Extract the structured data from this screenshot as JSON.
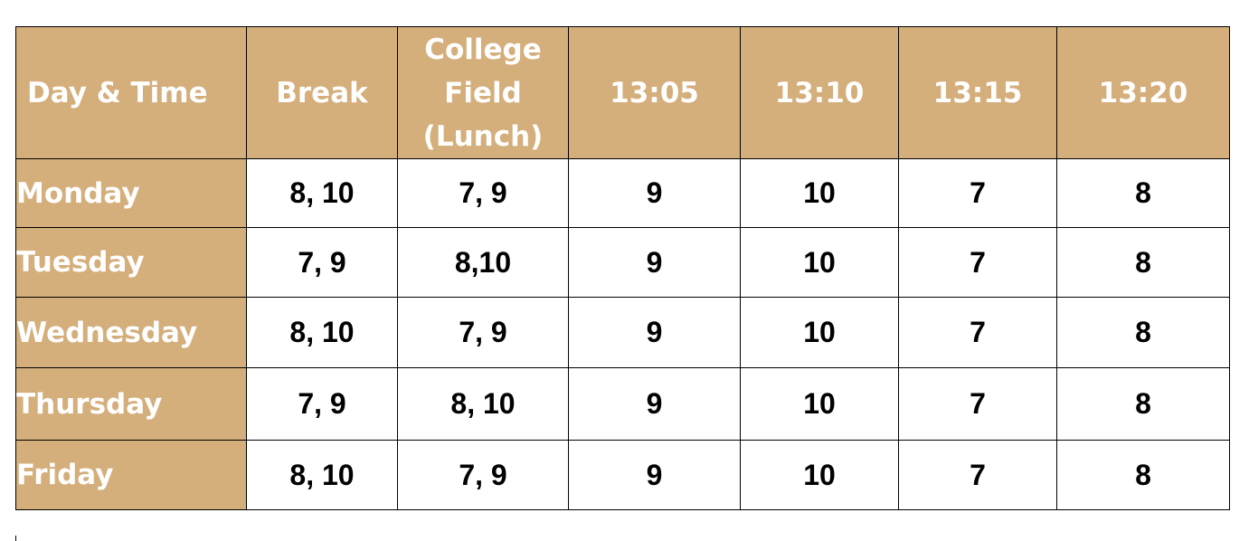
{
  "table": {
    "headers": [
      [
        "Day & Time"
      ],
      [
        "Break"
      ],
      [
        "College",
        "Field",
        "(Lunch)"
      ],
      [
        "13:05"
      ],
      [
        "13:10"
      ],
      [
        "13:15"
      ],
      [
        "13:20"
      ]
    ],
    "rows": [
      {
        "day": "Monday",
        "cells": [
          "8, 10",
          "7, 9",
          "9",
          "10",
          "7",
          "8"
        ]
      },
      {
        "day": "Tuesday",
        "cells": [
          "7, 9",
          "8,10",
          "9",
          "10",
          "7",
          "8"
        ]
      },
      {
        "day": "Wednesday",
        "cells": [
          "8, 10",
          "7, 9",
          "9",
          "10",
          "7",
          "8"
        ]
      },
      {
        "day": "Thursday",
        "cells": [
          "7, 9",
          "8, 10",
          "9",
          "10",
          "7",
          "8"
        ]
      },
      {
        "day": "Friday",
        "cells": [
          "8, 10",
          "7, 9",
          "9",
          "10",
          "7",
          "8"
        ]
      }
    ]
  },
  "colors": {
    "header_fill": "#d4ae7b",
    "header_text": "#ffffff",
    "body_text": "#000000",
    "border": "#000000"
  }
}
